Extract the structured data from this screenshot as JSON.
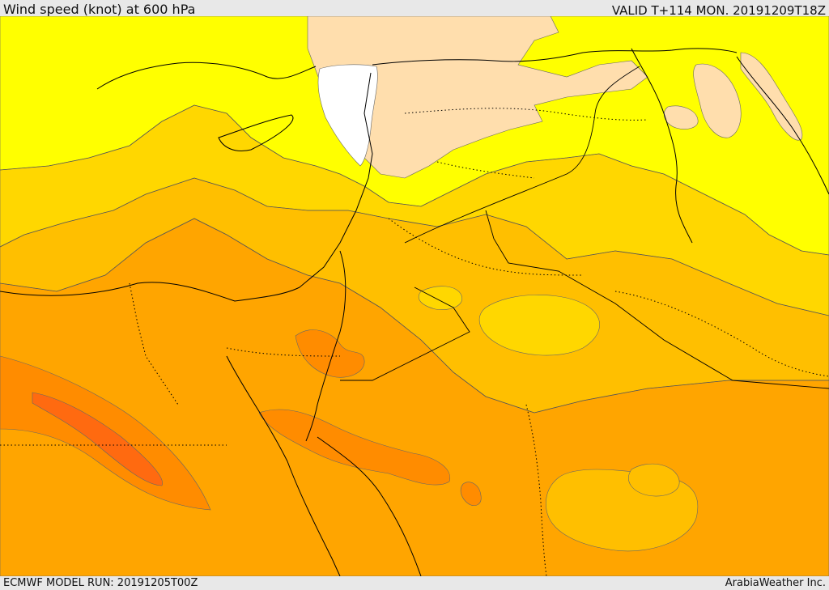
{
  "header": {
    "title": "Wind speed (knot) at 600 hPa",
    "valid": "VALID T+114 MON. 20191209T18Z"
  },
  "footer": {
    "model_run": "ECMWF MODEL RUN: 20191205T00Z",
    "credit": "ArabiaWeather Inc."
  },
  "colors": {
    "calm": "#ffffff",
    "very_light": "#ffdead",
    "light": "#ffff00",
    "moderate": "#ffd700",
    "fresh": "#ffbf00",
    "strong": "#ffa500",
    "very_strong": "#ff8c00",
    "max": "#ff6a10"
  }
}
